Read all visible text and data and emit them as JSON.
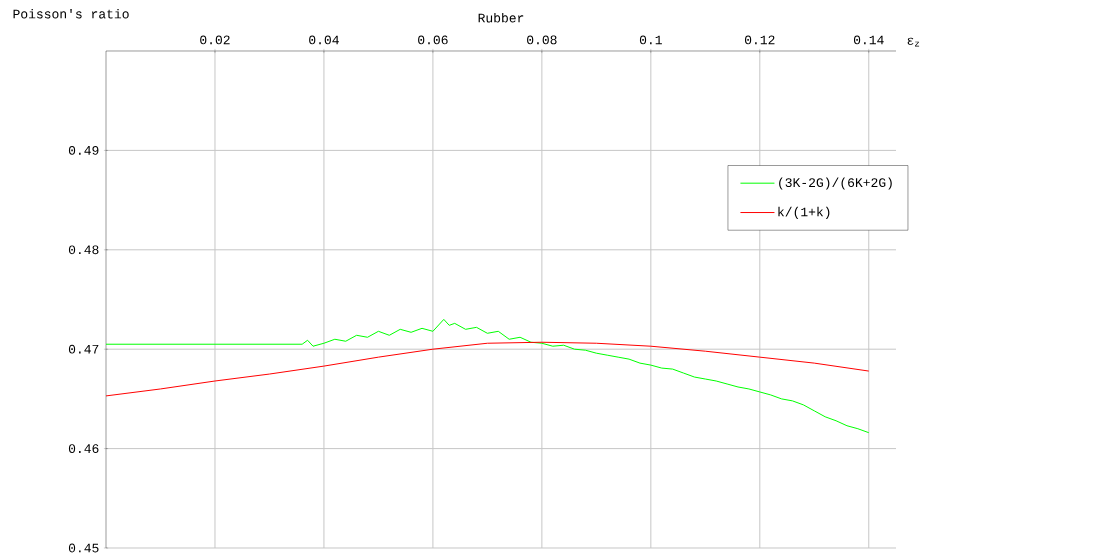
{
  "chart_data": {
    "type": "line",
    "title": "Rubber",
    "xlabel": "ε$_{z}$",
    "ylabel": "Poisson's ratio",
    "xlim": [
      0,
      0.145
    ],
    "ylim": [
      0.45,
      0.5
    ],
    "xticks": [
      0.02,
      0.04,
      0.06,
      0.08,
      {
        "value": 0.1,
        "label": "0.1"
      },
      0.12,
      0.14
    ],
    "yticks": [
      0.45,
      0.46,
      0.47,
      0.48,
      0.49
    ],
    "grid": true,
    "legend": "right",
    "marker": "none",
    "line_style": "solid",
    "series": [
      {
        "name": "(3K-2G)/(6K+2G)",
        "color": "#00ff00",
        "x": [
          0,
          0.036,
          0.037,
          0.038,
          0.04,
          0.042,
          0.044,
          0.046,
          0.048,
          0.05,
          0.052,
          0.054,
          0.056,
          0.058,
          0.06,
          0.062,
          0.063,
          0.064,
          0.066,
          0.068,
          0.07,
          0.072,
          0.074,
          0.076,
          0.078,
          0.08,
          0.082,
          0.084,
          0.086,
          0.088,
          0.09,
          0.092,
          0.094,
          0.096,
          0.098,
          0.1,
          0.102,
          0.104,
          0.106,
          0.108,
          0.11,
          0.112,
          0.114,
          0.116,
          0.118,
          0.12,
          0.122,
          0.124,
          0.126,
          0.128,
          0.13,
          0.132,
          0.134,
          0.136,
          0.138,
          0.14
        ],
        "values": [
          0.4705,
          0.4705,
          0.4709,
          0.4703,
          0.4706,
          0.471,
          0.4708,
          0.4714,
          0.4712,
          0.4718,
          0.4714,
          0.472,
          0.4717,
          0.4721,
          0.4718,
          0.473,
          0.4724,
          0.4726,
          0.472,
          0.4722,
          0.4716,
          0.4718,
          0.471,
          0.4712,
          0.4707,
          0.4706,
          0.4703,
          0.4704,
          0.47,
          0.4699,
          0.4696,
          0.4694,
          0.4692,
          0.469,
          0.4686,
          0.4684,
          0.4681,
          0.468,
          0.4676,
          0.4672,
          0.467,
          0.4668,
          0.4665,
          0.4662,
          0.466,
          0.4657,
          0.4654,
          0.465,
          0.4648,
          0.4644,
          0.4638,
          0.4632,
          0.4628,
          0.4623,
          0.462,
          0.4616
        ]
      },
      {
        "name": "k/(1+k)",
        "color": "#ff0000",
        "x": [
          0,
          0.01,
          0.02,
          0.03,
          0.04,
          0.05,
          0.06,
          0.07,
          0.08,
          0.09,
          0.1,
          0.11,
          0.12,
          0.13,
          0.14
        ],
        "values": [
          0.4653,
          0.466,
          0.4668,
          0.4675,
          0.4683,
          0.4692,
          0.47,
          0.4706,
          0.4707,
          0.4706,
          0.4703,
          0.4698,
          0.4692,
          0.4686,
          0.4678
        ]
      }
    ]
  }
}
